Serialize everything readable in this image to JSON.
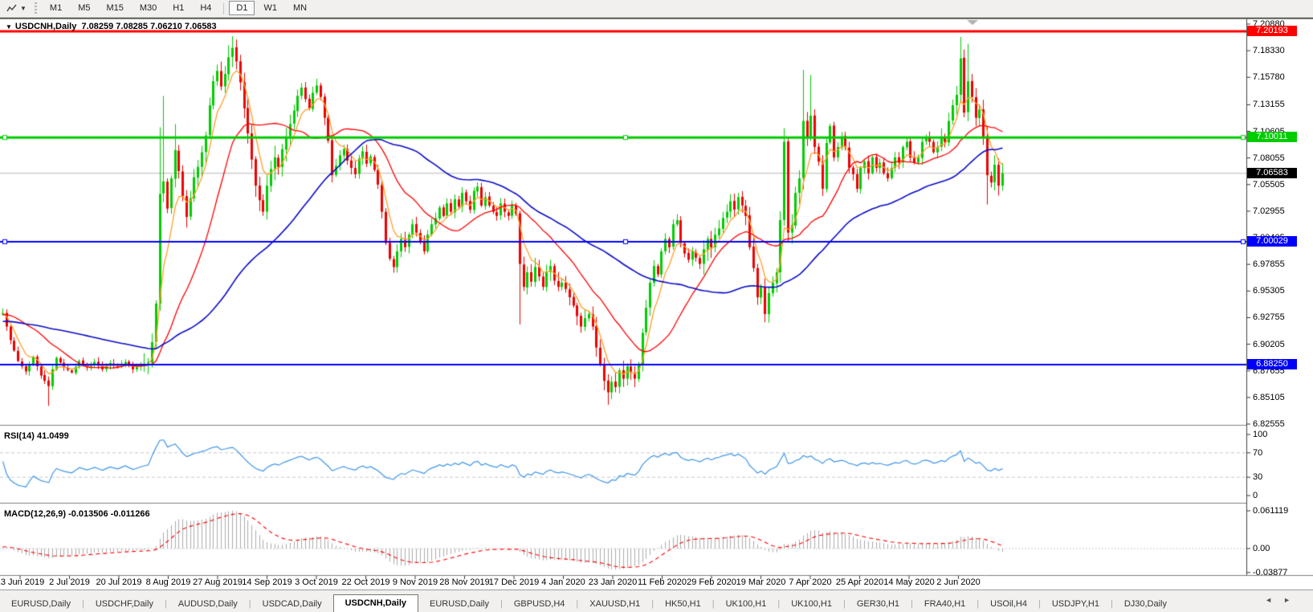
{
  "toolbar": {
    "tool_icon": "chart-line-tool",
    "dropdown_caret": "▼",
    "timeframes": [
      {
        "label": "M1"
      },
      {
        "label": "M5"
      },
      {
        "label": "M15"
      },
      {
        "label": "M30"
      },
      {
        "label": "H1"
      },
      {
        "label": "H4"
      },
      {
        "label": "D1"
      },
      {
        "label": "W1"
      },
      {
        "label": "MN"
      }
    ],
    "active_timeframe": "D1",
    "separator_after": "H4"
  },
  "chart": {
    "collapse_icon": "▼",
    "symbol_period": "USDCNH,Daily",
    "quote": "7.08259 7.08285 7.06210 7.06583"
  },
  "rsi_panel": {
    "label": "RSI(14) 41.0499"
  },
  "macd_panel": {
    "label": "MACD(12,26,9) -0.013506 -0.011266"
  },
  "tabbar": {
    "tabs": [
      {
        "label": "EURUSD,Daily"
      },
      {
        "label": "USDCHF,Daily"
      },
      {
        "label": "AUDUSD,Daily"
      },
      {
        "label": "USDCAD,Daily"
      },
      {
        "label": "USDCNH,Daily"
      },
      {
        "label": "EURUSD,Daily"
      },
      {
        "label": "GBPUSD,H4"
      },
      {
        "label": "XAUUSD,H1"
      },
      {
        "label": "HK50,H1"
      },
      {
        "label": "UK100,H1"
      },
      {
        "label": "UK100,H1"
      },
      {
        "label": "GER30,H1"
      },
      {
        "label": "FRA40,H1"
      },
      {
        "label": "USOil,H4"
      },
      {
        "label": "USDJPY,H1"
      },
      {
        "label": "DJ30,Daily"
      }
    ],
    "active_index": 4,
    "scroll_left_icon": "◄",
    "scroll_right_icon": "►"
  },
  "chart_data": {
    "type": "candlestick",
    "symbol": "USDCNH",
    "timeframe": "Daily",
    "quote_ohlc": {
      "open": "7.08259",
      "high": "7.08285",
      "low": "7.06210",
      "close": "7.06583"
    },
    "candle_up_color": "#00CC00",
    "candle_down_color": "#EC0000",
    "y_axis_ticks": [
      "7.20880",
      "7.18330",
      "7.15780",
      "7.13155",
      "7.10605",
      "7.08055",
      "7.05505",
      "7.02955",
      "7.00405",
      "6.97855",
      "6.95305",
      "6.92755",
      "6.90205",
      "6.87655",
      "6.85105",
      "6.82555"
    ],
    "x_axis_dates": [
      "13 Jun 2019",
      "2 Jul 2019",
      "20 Jul 2019",
      "8 Aug 2019",
      "27 Aug 2019",
      "14 Sep 2019",
      "3 Oct 2019",
      "22 Oct 2019",
      "9 Nov 2019",
      "28 Nov 2019",
      "17 Dec 2019",
      "4 Jan 2020",
      "23 Jan 2020",
      "11 Feb 2020",
      "29 Feb 2020",
      "19 Mar 2020",
      "7 Apr 2020",
      "25 Apr 2020",
      "14 May 2020",
      "2 Jun 2020"
    ],
    "horizontal_lines": [
      {
        "price": 7.20193,
        "label": "7.20193",
        "color": "#FF0000",
        "width": 3,
        "handles": false
      },
      {
        "price": 7.10011,
        "label": "7.10011",
        "color": "#00CC00",
        "width": 3,
        "handles": true
      },
      {
        "price": 7.00029,
        "label": "7.00029",
        "color": "#0000FF",
        "width": 2,
        "handles": true
      },
      {
        "price": 6.8825,
        "label": "6.88250",
        "color": "#0000FF",
        "width": 2,
        "handles": false
      }
    ],
    "current_price": {
      "price": 7.06583,
      "label": "7.06583",
      "line_color": "#B8B8B8",
      "box_color": "#000000"
    },
    "moving_averages": [
      {
        "name": "fast",
        "type": "ema",
        "period": 6,
        "color": "#FF9F28"
      },
      {
        "name": "medium",
        "type": "sma",
        "period": 20,
        "color": "#FF0000"
      },
      {
        "name": "slow",
        "type": "sma",
        "period": 55,
        "color": "#0A0AC8"
      }
    ],
    "rsi": {
      "period": 14,
      "current": "41.0499",
      "color": "#3E96E8",
      "levels": [
        30,
        70
      ],
      "ticks": [
        "100",
        "70",
        "30",
        "0"
      ],
      "tick_values": [
        100,
        70,
        30,
        0
      ]
    },
    "macd": {
      "params": "12,26,9",
      "current_main": "-0.013506",
      "current_signal": "-0.011266",
      "hist_color": "#ABABAB",
      "signal_color": "#FF0000",
      "ticks": [
        "0.061119",
        "0.00",
        "-0.03877"
      ],
      "tick_values": [
        0.061119,
        0,
        -0.03877
      ]
    },
    "price_anchors": [
      [
        0,
        6.932
      ],
      [
        2,
        6.906
      ],
      [
        4,
        6.886
      ],
      [
        6,
        6.876
      ],
      [
        8,
        6.89
      ],
      [
        10,
        6.872
      ],
      [
        12,
        6.862
      ],
      [
        13,
        6.878
      ],
      [
        14,
        6.889
      ],
      [
        16,
        6.88
      ],
      [
        18,
        6.875
      ],
      [
        20,
        6.886
      ],
      [
        22,
        6.88
      ],
      [
        24,
        6.885
      ],
      [
        26,
        6.878
      ],
      [
        28,
        6.884
      ],
      [
        30,
        6.88
      ],
      [
        32,
        6.885
      ],
      [
        34,
        6.878
      ],
      [
        36,
        6.882
      ],
      [
        38,
        6.885
      ],
      [
        39,
        6.904
      ],
      [
        40,
        6.941
      ],
      [
        41,
        7.046
      ],
      [
        42,
        7.058
      ],
      [
        43,
        7.032
      ],
      [
        44,
        7.061
      ],
      [
        45,
        7.088
      ],
      [
        46,
        7.068
      ],
      [
        47,
        7.044
      ],
      [
        48,
        7.024
      ],
      [
        49,
        7.042
      ],
      [
        50,
        7.062
      ],
      [
        51,
        7.072
      ],
      [
        52,
        7.086
      ],
      [
        53,
        7.102
      ],
      [
        54,
        7.131
      ],
      [
        55,
        7.154
      ],
      [
        56,
        7.164
      ],
      [
        57,
        7.149
      ],
      [
        58,
        7.161
      ],
      [
        59,
        7.177
      ],
      [
        60,
        7.186
      ],
      [
        61,
        7.173
      ],
      [
        62,
        7.153
      ],
      [
        63,
        7.128
      ],
      [
        64,
        7.104
      ],
      [
        65,
        7.079
      ],
      [
        66,
        7.054
      ],
      [
        67,
        7.04
      ],
      [
        68,
        7.029
      ],
      [
        69,
        7.054
      ],
      [
        70,
        7.07
      ],
      [
        71,
        7.081
      ],
      [
        72,
        7.072
      ],
      [
        73,
        7.089
      ],
      [
        74,
        7.101
      ],
      [
        75,
        7.113
      ],
      [
        76,
        7.126
      ],
      [
        77,
        7.14
      ],
      [
        78,
        7.148
      ],
      [
        79,
        7.137
      ],
      [
        80,
        7.128
      ],
      [
        81,
        7.143
      ],
      [
        82,
        7.15
      ],
      [
        83,
        7.139
      ],
      [
        84,
        7.119
      ],
      [
        85,
        7.097
      ],
      [
        86,
        7.064
      ],
      [
        87,
        7.073
      ],
      [
        88,
        7.083
      ],
      [
        89,
        7.089
      ],
      [
        90,
        7.078
      ],
      [
        91,
        7.071
      ],
      [
        92,
        7.065
      ],
      [
        93,
        7.08
      ],
      [
        94,
        7.087
      ],
      [
        95,
        7.075
      ],
      [
        96,
        7.082
      ],
      [
        97,
        7.069
      ],
      [
        98,
        7.055
      ],
      [
        99,
        7.029
      ],
      [
        100,
        6.999
      ],
      [
        101,
        6.984
      ],
      [
        102,
        6.976
      ],
      [
        103,
        6.991
      ],
      [
        104,
        7.003
      ],
      [
        105,
        6.995
      ],
      [
        106,
        7.007
      ],
      [
        107,
        7.017
      ],
      [
        108,
        7.009
      ],
      [
        109,
        7.001
      ],
      [
        110,
        6.991
      ],
      [
        111,
        7.007
      ],
      [
        112,
        7.017
      ],
      [
        113,
        7.023
      ],
      [
        114,
        7.033
      ],
      [
        115,
        7.025
      ],
      [
        116,
        7.037
      ],
      [
        117,
        7.029
      ],
      [
        118,
        7.041
      ],
      [
        119,
        7.034
      ],
      [
        120,
        7.047
      ],
      [
        121,
        7.039
      ],
      [
        122,
        7.031
      ],
      [
        123,
        7.049
      ],
      [
        124,
        7.053
      ],
      [
        125,
        7.035
      ],
      [
        126,
        7.043
      ],
      [
        127,
        7.035
      ],
      [
        128,
        7.029
      ],
      [
        129,
        7.025
      ],
      [
        130,
        7.037
      ],
      [
        131,
        7.029
      ],
      [
        132,
        7.025
      ],
      [
        133,
        7.035
      ],
      [
        134,
        7.027
      ],
      [
        135,
        6.979
      ],
      [
        136,
        6.957
      ],
      [
        137,
        6.971
      ],
      [
        138,
        6.962
      ],
      [
        139,
        6.976
      ],
      [
        140,
        6.967
      ],
      [
        141,
        6.957
      ],
      [
        142,
        6.971
      ],
      [
        143,
        6.977
      ],
      [
        144,
        6.963
      ],
      [
        145,
        6.957
      ],
      [
        146,
        6.961
      ],
      [
        147,
        6.955
      ],
      [
        148,
        6.947
      ],
      [
        149,
        6.939
      ],
      [
        150,
        6.929
      ],
      [
        151,
        6.919
      ],
      [
        152,
        6.927
      ],
      [
        153,
        6.931
      ],
      [
        154,
        6.919
      ],
      [
        155,
        6.899
      ],
      [
        156,
        6.883
      ],
      [
        157,
        6.867
      ],
      [
        158,
        6.856
      ],
      [
        159,
        6.866
      ],
      [
        160,
        6.861
      ],
      [
        161,
        6.877
      ],
      [
        162,
        6.869
      ],
      [
        163,
        6.881
      ],
      [
        164,
        6.875
      ],
      [
        165,
        6.869
      ],
      [
        166,
        6.883
      ],
      [
        167,
        6.913
      ],
      [
        168,
        6.937
      ],
      [
        169,
        6.961
      ],
      [
        170,
        6.977
      ],
      [
        171,
        6.969
      ],
      [
        172,
        6.991
      ],
      [
        173,
        7.003
      ],
      [
        174,
        6.995
      ],
      [
        175,
        7.017
      ],
      [
        176,
        7.021
      ],
      [
        177,
        6.999
      ],
      [
        178,
        6.989
      ],
      [
        179,
        6.983
      ],
      [
        180,
        6.991
      ],
      [
        181,
        6.985
      ],
      [
        182,
        6.979
      ],
      [
        183,
        6.993
      ],
      [
        184,
        7.003
      ],
      [
        185,
        6.995
      ],
      [
        186,
        7.007
      ],
      [
        187,
        7.013
      ],
      [
        188,
        7.023
      ],
      [
        189,
        7.029
      ],
      [
        190,
        7.039
      ],
      [
        191,
        7.031
      ],
      [
        192,
        7.043
      ],
      [
        193,
        7.035
      ],
      [
        194,
        7.025
      ],
      [
        195,
        6.995
      ],
      [
        196,
        6.975
      ],
      [
        197,
        6.947
      ],
      [
        198,
        6.957
      ],
      [
        199,
        6.931
      ],
      [
        200,
        6.951
      ],
      [
        201,
        6.961
      ],
      [
        202,
        6.971
      ],
      [
        203,
        7.021
      ],
      [
        204,
        7.096
      ],
      [
        205,
        7.009
      ],
      [
        206,
        7.016
      ],
      [
        207,
        7.047
      ],
      [
        208,
        7.061
      ],
      [
        209,
        7.116
      ],
      [
        210,
        7.101
      ],
      [
        211,
        7.121
      ],
      [
        212,
        7.091
      ],
      [
        213,
        7.077
      ],
      [
        214,
        7.051
      ],
      [
        215,
        7.095
      ],
      [
        216,
        7.111
      ],
      [
        217,
        7.081
      ],
      [
        218,
        7.091
      ],
      [
        219,
        7.101
      ],
      [
        220,
        7.091
      ],
      [
        221,
        7.071
      ],
      [
        222,
        7.065
      ],
      [
        223,
        7.051
      ],
      [
        224,
        7.071
      ],
      [
        225,
        7.077
      ],
      [
        226,
        7.066
      ],
      [
        227,
        7.081
      ],
      [
        228,
        7.071
      ],
      [
        229,
        7.076
      ],
      [
        230,
        7.066
      ],
      [
        231,
        7.061
      ],
      [
        232,
        7.071
      ],
      [
        233,
        7.081
      ],
      [
        234,
        7.076
      ],
      [
        235,
        7.091
      ],
      [
        236,
        7.096
      ],
      [
        237,
        7.081
      ],
      [
        238,
        7.076
      ],
      [
        239,
        7.081
      ],
      [
        240,
        7.096
      ],
      [
        241,
        7.101
      ],
      [
        242,
        7.096
      ],
      [
        243,
        7.086
      ],
      [
        244,
        7.091
      ],
      [
        245,
        7.101
      ],
      [
        246,
        7.096
      ],
      [
        247,
        7.116
      ],
      [
        248,
        7.131
      ],
      [
        249,
        7.141
      ],
      [
        250,
        7.176
      ],
      [
        251,
        7.124
      ],
      [
        252,
        7.154
      ],
      [
        253,
        7.139
      ],
      [
        254,
        7.119
      ],
      [
        255,
        7.127
      ],
      [
        256,
        7.101
      ],
      [
        257,
        7.064
      ],
      [
        258,
        7.057
      ],
      [
        259,
        7.074
      ],
      [
        260,
        7.054
      ],
      [
        261,
        7.066
      ]
    ],
    "wick_overrides": [
      {
        "i": 12,
        "low": 6.843
      },
      {
        "i": 41,
        "high": 7.11
      },
      {
        "i": 42,
        "high": 7.14
      },
      {
        "i": 45,
        "high": 7.113
      },
      {
        "i": 60,
        "high": 7.196
      },
      {
        "i": 68,
        "low": 7.025
      },
      {
        "i": 135,
        "low": 6.921
      },
      {
        "i": 158,
        "low": 6.844
      },
      {
        "i": 199,
        "low": 6.923
      },
      {
        "i": 204,
        "high": 7.109
      },
      {
        "i": 209,
        "high": 7.165
      },
      {
        "i": 211,
        "high": 7.16
      },
      {
        "i": 250,
        "high": 7.1965
      },
      {
        "i": 252,
        "high": 7.19
      },
      {
        "i": 257,
        "low": 7.036
      }
    ]
  }
}
